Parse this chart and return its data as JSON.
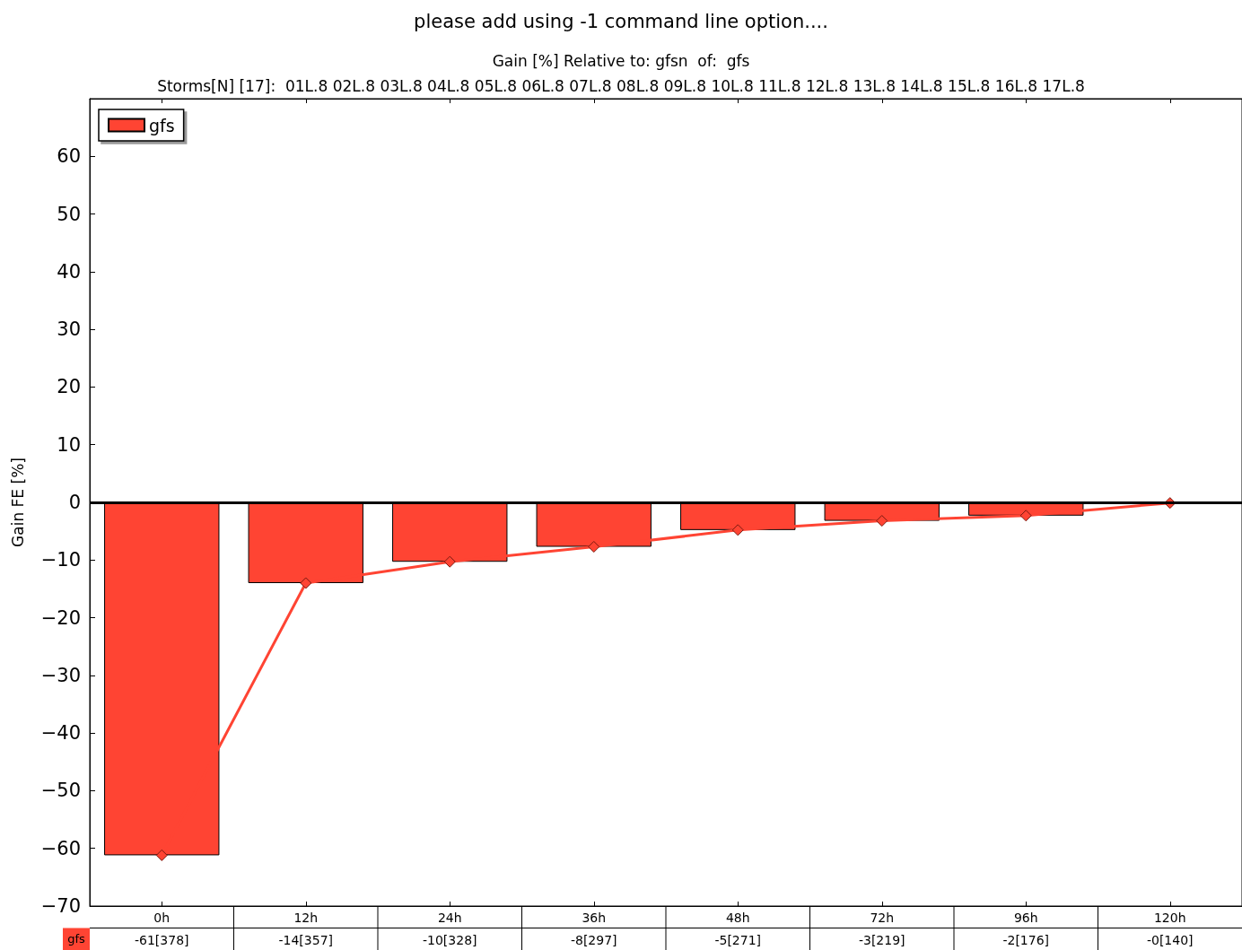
{
  "chart_data": {
    "type": "bar",
    "title": "please add using -1 command line option....",
    "subtitle": "Gain [%] Relative to: gfsn  of:  gfs",
    "annotations": [
      "Storms[N] [17]:  01L.8 02L.8 03L.8 04L.8 05L.8 06L.8 07L.8 08L.8 09L.8 10L.8 11L.8 12L.8 13L.8 14L.8 15L.8 16L.8 17L.8"
    ],
    "ylabel": "Gain FE [%]",
    "categories": [
      "0h",
      "12h",
      "24h",
      "36h",
      "48h",
      "72h",
      "96h",
      "120h"
    ],
    "series": [
      {
        "name": "gfs",
        "color": "#ff4433",
        "values": [
          -61.2,
          -14,
          -10.3,
          -7.7,
          -4.8,
          -3.2,
          -2.3,
          null
        ],
        "value_labels": [
          "-61[378]",
          "-14[357]",
          "-10[328]",
          "-8[297]",
          "-5[271]",
          "-3[219]",
          "-2[176]",
          "-0[140]"
        ]
      },
      {
        "type": "line",
        "color": "#ff4433",
        "marker": "diamond",
        "line_style": "solid",
        "values": [
          -61.2,
          -14,
          -10.3,
          -7.7,
          -4.8,
          -3.2,
          -2.3,
          -0.1
        ]
      }
    ],
    "ylim": [
      -70,
      70
    ],
    "yticks": [
      -70,
      -60,
      -50,
      -40,
      -30,
      -20,
      -10,
      0,
      10,
      20,
      30,
      40,
      50,
      60
    ],
    "ref_lines": [
      {
        "axis": "y",
        "value": 0,
        "color": "#000000",
        "line_style": "solid"
      }
    ],
    "legend": "top left",
    "grid": false
  }
}
